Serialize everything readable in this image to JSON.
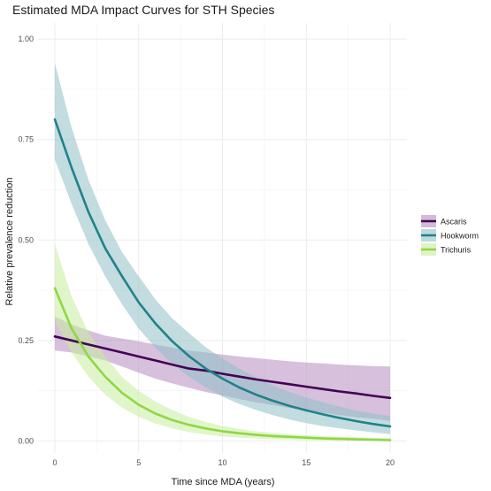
{
  "chart_data": {
    "type": "line",
    "title": "Estimated MDA Impact Curves for STH Species",
    "xlabel": "Time since MDA (years)",
    "ylabel": "Relative prevalence reduction",
    "xlim": [
      -1,
      21
    ],
    "ylim": [
      -0.03,
      1.04
    ],
    "x_ticks": [
      0,
      5,
      10,
      15,
      20
    ],
    "x_tick_labels": [
      "0",
      "5",
      "10",
      "15",
      "20"
    ],
    "y_ticks": [
      0,
      0.25,
      0.5,
      0.75,
      1.0
    ],
    "y_tick_labels": [
      "0.00",
      "0.25",
      "0.50",
      "0.75",
      "1.00"
    ],
    "grid": true,
    "legend_position": "right",
    "x": [
      0,
      1,
      2,
      3,
      4,
      5,
      6,
      7,
      8,
      9,
      10,
      11,
      12,
      13,
      14,
      15,
      16,
      17,
      18,
      19,
      20
    ],
    "series": [
      {
        "name": "Ascaris",
        "color": "#440154",
        "band_color": "#b48cc0",
        "values": [
          0.26,
          0.25,
          0.24,
          0.23,
          0.22,
          0.21,
          0.2,
          0.19,
          0.18,
          0.175,
          0.167,
          0.16,
          0.153,
          0.147,
          0.141,
          0.135,
          0.129,
          0.123,
          0.118,
          0.112,
          0.107
        ],
        "lower": [
          0.225,
          0.22,
          0.21,
          0.2,
          0.185,
          0.17,
          0.155,
          0.143,
          0.132,
          0.122,
          0.113,
          0.104,
          0.096,
          0.089,
          0.082,
          0.075,
          0.07,
          0.064,
          0.059,
          0.055,
          0.05
        ],
        "upper": [
          0.31,
          0.29,
          0.275,
          0.262,
          0.255,
          0.248,
          0.24,
          0.232,
          0.225,
          0.22,
          0.215,
          0.21,
          0.206,
          0.202,
          0.198,
          0.195,
          0.193,
          0.19,
          0.188,
          0.186,
          0.185
        ]
      },
      {
        "name": "Hookworm",
        "color": "#21818a",
        "band_color": "#8fc0c7",
        "values": [
          0.8,
          0.68,
          0.57,
          0.48,
          0.41,
          0.345,
          0.292,
          0.248,
          0.211,
          0.18,
          0.155,
          0.133,
          0.115,
          0.1,
          0.087,
          0.076,
          0.066,
          0.057,
          0.049,
          0.042,
          0.036
        ],
        "lower": [
          0.7,
          0.59,
          0.49,
          0.41,
          0.34,
          0.28,
          0.232,
          0.192,
          0.16,
          0.133,
          0.11,
          0.092,
          0.077,
          0.064,
          0.053,
          0.044,
          0.037,
          0.031,
          0.026,
          0.021,
          0.017
        ],
        "upper": [
          0.94,
          0.78,
          0.65,
          0.55,
          0.47,
          0.41,
          0.352,
          0.305,
          0.268,
          0.233,
          0.205,
          0.18,
          0.158,
          0.138,
          0.122,
          0.108,
          0.096,
          0.085,
          0.075,
          0.068,
          0.062
        ]
      },
      {
        "name": "Trichuris",
        "color": "#8fd744",
        "band_color": "#c8ec9e",
        "values": [
          0.38,
          0.28,
          0.21,
          0.16,
          0.12,
          0.09,
          0.068,
          0.052,
          0.04,
          0.031,
          0.024,
          0.019,
          0.015,
          0.012,
          0.01,
          0.008,
          0.006,
          0.005,
          0.004,
          0.003,
          0.002
        ],
        "lower": [
          0.3,
          0.22,
          0.16,
          0.115,
          0.083,
          0.06,
          0.043,
          0.031,
          0.022,
          0.016,
          0.011,
          0.008,
          0.006,
          0.004,
          0.003,
          0.002,
          0.0015,
          0.001,
          0.0007,
          0.0005,
          0.0003
        ],
        "upper": [
          0.49,
          0.36,
          0.27,
          0.21,
          0.16,
          0.125,
          0.098,
          0.077,
          0.06,
          0.047,
          0.037,
          0.03,
          0.024,
          0.02,
          0.017,
          0.014,
          0.012,
          0.01,
          0.009,
          0.008,
          0.007
        ]
      }
    ]
  }
}
